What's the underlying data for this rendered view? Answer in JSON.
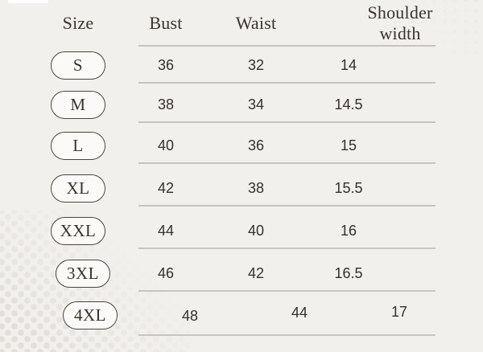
{
  "chart_data": {
    "type": "table",
    "columns": [
      "Size",
      "Bust",
      "Waist",
      "Shoulder width"
    ],
    "rows": [
      {
        "size": "S",
        "bust": "36",
        "waist": "32",
        "shoulder": "14"
      },
      {
        "size": "M",
        "bust": "38",
        "waist": "34",
        "shoulder": "14.5"
      },
      {
        "size": "L",
        "bust": "40",
        "waist": "36",
        "shoulder": "15"
      },
      {
        "size": "XL",
        "bust": "42",
        "waist": "38",
        "shoulder": "15.5"
      },
      {
        "size": "XXL",
        "bust": "44",
        "waist": "40",
        "shoulder": "16"
      },
      {
        "size": "3XL",
        "bust": "46",
        "waist": "42",
        "shoulder": "16.5"
      },
      {
        "size": "4XL",
        "bust": "48",
        "waist": "44",
        "shoulder": "17"
      }
    ],
    "layout": "size badges in left column; gray row dividers span the three measurement columns; no units shown"
  },
  "colors": {
    "bg": "#f2f0ed",
    "line": "#c8c5c1",
    "ink": "#3b332b",
    "num": "#34302c",
    "pill-border": "#4e443a",
    "pill-bg": "#fbfaf8",
    "dot": "#e2dfdb"
  }
}
